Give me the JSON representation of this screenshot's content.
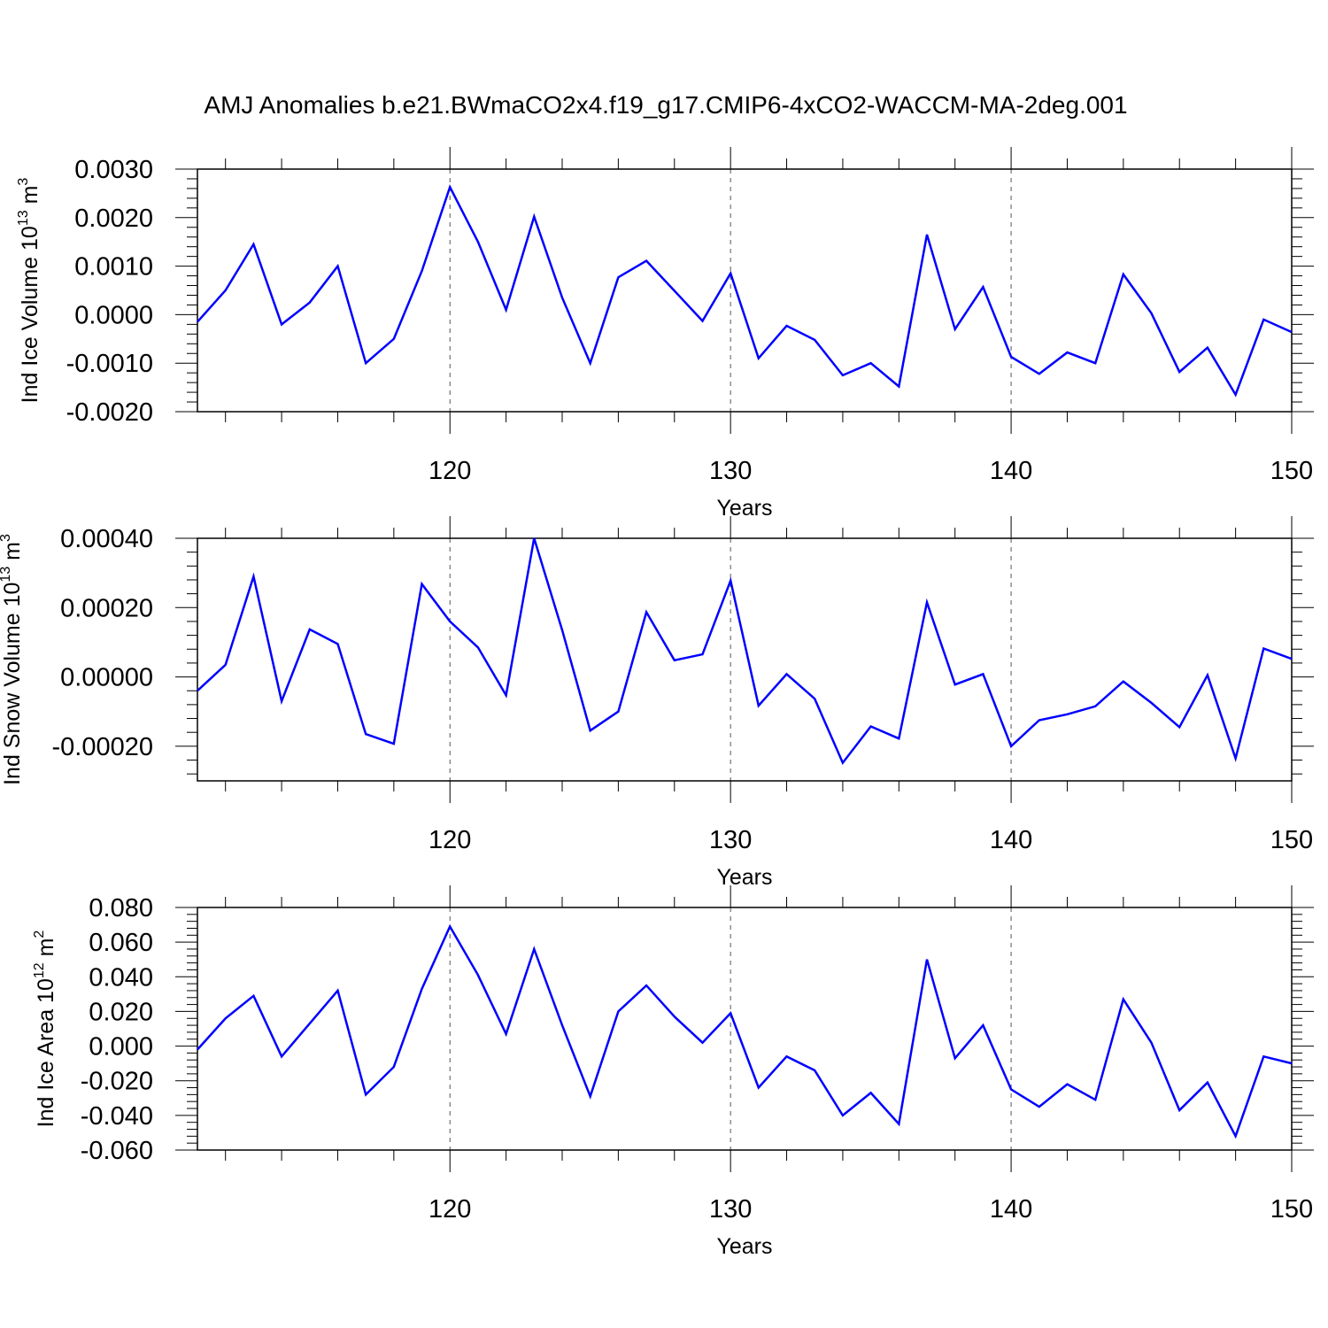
{
  "title": "AMJ Anomalies b.e21.BWmaCO2x4.f19_g17.CMIP6-4xCO2-WACCM-MA-2deg.001",
  "line_color": "#0000ff",
  "chart_data": [
    {
      "type": "line",
      "ylabel": {
        "base": "Ind Ice Volume 10",
        "exp": "13",
        "unit": " m",
        "unit_exp": "3"
      },
      "xlabel": "Years",
      "xlim": [
        111,
        150
      ],
      "ylim": [
        -0.002,
        0.003
      ],
      "yticks": [
        -0.002,
        -0.001,
        0.0,
        0.001,
        0.002,
        0.003
      ],
      "ytick_labels": [
        "-0.0020",
        "-0.0010",
        "0.0000",
        "0.0010",
        "0.0020",
        "0.0030"
      ],
      "xticks": [
        120,
        130,
        140,
        150
      ],
      "xtick_labels": [
        "120",
        "130",
        "140",
        "150"
      ],
      "grid_x": [
        120,
        130,
        140
      ],
      "x": [
        111,
        112,
        113,
        114,
        115,
        116,
        117,
        118,
        119,
        120,
        121,
        122,
        123,
        124,
        125,
        126,
        127,
        128,
        129,
        130,
        131,
        132,
        133,
        134,
        135,
        136,
        137,
        138,
        139,
        140,
        141,
        142,
        143,
        144,
        145,
        146,
        147,
        148,
        149,
        150
      ],
      "y": [
        -0.00015,
        0.0005,
        0.00145,
        -0.0002,
        0.00025,
        0.001,
        -0.001,
        -0.0005,
        0.0009,
        0.00263,
        0.0015,
        0.0001,
        0.00202,
        0.00035,
        -0.001,
        0.00077,
        0.00111,
        0.00049,
        -0.00013,
        0.00085,
        -0.0009,
        -0.00023,
        -0.00052,
        -0.00125,
        -0.001,
        -0.00148,
        0.00165,
        -0.0003,
        0.00057,
        -0.00087,
        -0.00122,
        -0.00078,
        -0.001,
        0.00083,
        3e-05,
        -0.00118,
        -0.00068,
        -0.00165,
        -0.0001,
        -0.00036
      ]
    },
    {
      "type": "line",
      "ylabel": {
        "base": "Ind Snow Volume 10",
        "exp": "13",
        "unit": " m",
        "unit_exp": "3"
      },
      "xlabel": "Years",
      "xlim": [
        111,
        150
      ],
      "ylim": [
        -0.0003,
        0.0004
      ],
      "yticks": [
        -0.0002,
        0.0,
        0.0002,
        0.0004
      ],
      "ytick_labels": [
        "-0.00020",
        "0.00000",
        "0.00020",
        "0.00040"
      ],
      "xticks": [
        120,
        130,
        140,
        150
      ],
      "xtick_labels": [
        "120",
        "130",
        "140",
        "150"
      ],
      "grid_x": [
        120,
        130,
        140
      ],
      "x": [
        111,
        112,
        113,
        114,
        115,
        116,
        117,
        118,
        119,
        120,
        121,
        122,
        123,
        124,
        125,
        126,
        127,
        128,
        129,
        130,
        131,
        132,
        133,
        134,
        135,
        136,
        137,
        138,
        139,
        140,
        141,
        142,
        143,
        144,
        145,
        146,
        147,
        148,
        149,
        150
      ],
      "y": [
        -4e-05,
        3.5e-05,
        0.00029,
        -7e-05,
        0.000137,
        9.5e-05,
        -0.000165,
        -0.000193,
        0.000268,
        0.00016,
        8.5e-05,
        -5.3e-05,
        0.0004,
        0.000135,
        -0.000155,
        -0.0001,
        0.000187,
        4.8e-05,
        6.5e-05,
        0.000278,
        -8.3e-05,
        8e-06,
        -6.3e-05,
        -0.000248,
        -0.000143,
        -0.000178,
        0.000215,
        -2.2e-05,
        8e-06,
        -0.0002,
        -0.000125,
        -0.000108,
        -8.5e-05,
        -1.3e-05,
        -7.5e-05,
        -0.000145,
        5e-06,
        -0.000235,
        8.2e-05,
        5.2e-05
      ]
    },
    {
      "type": "line",
      "ylabel": {
        "base": "Ind Ice Area 10",
        "exp": "12",
        "unit": " m",
        "unit_exp": "2"
      },
      "xlabel": "Years",
      "xlim": [
        111,
        150
      ],
      "ylim": [
        -0.06,
        0.08
      ],
      "yticks": [
        -0.06,
        -0.04,
        -0.02,
        0.0,
        0.02,
        0.04,
        0.06,
        0.08
      ],
      "ytick_labels": [
        "-0.060",
        "-0.040",
        "-0.020",
        "0.000",
        "0.020",
        "0.040",
        "0.060",
        "0.080"
      ],
      "xticks": [
        120,
        130,
        140,
        150
      ],
      "xtick_labels": [
        "120",
        "130",
        "140",
        "150"
      ],
      "grid_x": [
        120,
        130,
        140
      ],
      "x": [
        111,
        112,
        113,
        114,
        115,
        116,
        117,
        118,
        119,
        120,
        121,
        122,
        123,
        124,
        125,
        126,
        127,
        128,
        129,
        130,
        131,
        132,
        133,
        134,
        135,
        136,
        137,
        138,
        139,
        140,
        141,
        142,
        143,
        144,
        145,
        146,
        147,
        148,
        149,
        150
      ],
      "y": [
        -0.002,
        0.016,
        0.029,
        -0.006,
        0.013,
        0.032,
        -0.028,
        -0.012,
        0.033,
        0.069,
        0.041,
        0.007,
        0.056,
        0.012,
        -0.029,
        0.02,
        0.035,
        0.017,
        0.002,
        0.019,
        -0.024,
        -0.006,
        -0.014,
        -0.04,
        -0.027,
        -0.045,
        0.05,
        -0.007,
        0.012,
        -0.025,
        -0.035,
        -0.022,
        -0.031,
        0.027,
        0.002,
        -0.037,
        -0.021,
        -0.052,
        -0.006,
        -0.01
      ]
    }
  ]
}
